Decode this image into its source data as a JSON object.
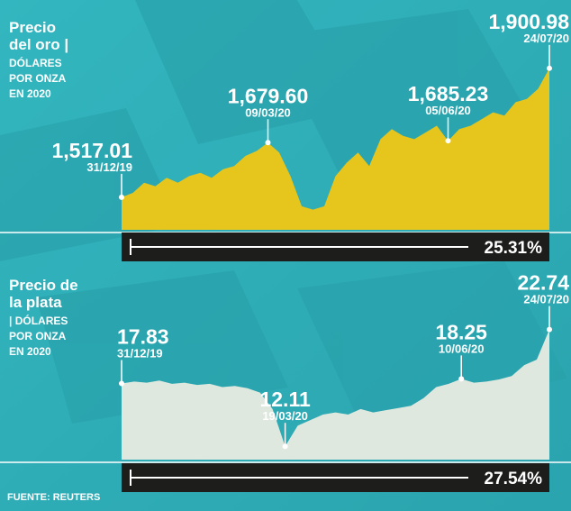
{
  "chart_data": [
    {
      "type": "area",
      "title_lines": [
        "Precio",
        "del oro |"
      ],
      "subtitle_lines": [
        "DÓLARES",
        "POR ONZA",
        "EN 2020"
      ],
      "color": "#e6c51c",
      "ylim": [
        1420,
        1930
      ],
      "categories": [
        "31/12/19",
        null,
        null,
        null,
        null,
        null,
        null,
        null,
        null,
        null,
        null,
        null,
        null,
        "09/03/20",
        null,
        null,
        null,
        null,
        null,
        null,
        null,
        null,
        null,
        null,
        null,
        null,
        null,
        null,
        null,
        "05/06/20",
        null,
        null,
        null,
        null,
        null,
        null,
        null,
        null,
        "24/07/20"
      ],
      "values": [
        1517.01,
        1530,
        1560,
        1550,
        1575,
        1560,
        1580,
        1590,
        1575,
        1600,
        1610,
        1640,
        1655,
        1679.6,
        1650,
        1580,
        1490,
        1480,
        1490,
        1580,
        1620,
        1650,
        1610,
        1690,
        1720,
        1700,
        1690,
        1710,
        1730,
        1685.23,
        1720,
        1730,
        1750,
        1770,
        1760,
        1800,
        1810,
        1840,
        1900.98
      ],
      "value_labels": [
        "1,517.01",
        null,
        null,
        null,
        null,
        null,
        null,
        null,
        null,
        null,
        null,
        null,
        null,
        "1,679.60",
        null,
        null,
        null,
        null,
        null,
        null,
        null,
        null,
        null,
        null,
        null,
        null,
        null,
        null,
        null,
        "1,685.23",
        null,
        null,
        null,
        null,
        null,
        null,
        null,
        null,
        "1,900.98"
      ],
      "change": "25.31%"
    },
    {
      "type": "area",
      "title_lines": [
        "Precio de",
        "la plata"
      ],
      "subtitle_lines": [
        "| DÓLARES",
        "POR ONZA",
        "EN 2020"
      ],
      "color": "#dfe8de",
      "ylim": [
        10.9,
        23.2
      ],
      "categories": [
        "31/12/19",
        null,
        null,
        null,
        null,
        null,
        null,
        null,
        null,
        null,
        null,
        null,
        null,
        "19/03/20",
        null,
        null,
        null,
        null,
        null,
        null,
        null,
        null,
        null,
        null,
        null,
        null,
        null,
        "10/06/20",
        null,
        null,
        null,
        null,
        null,
        null,
        "24/07/20"
      ],
      "values": [
        17.83,
        18.0,
        17.9,
        18.1,
        17.8,
        17.9,
        17.7,
        17.8,
        17.5,
        17.6,
        17.4,
        17.0,
        15.5,
        12.11,
        14.0,
        14.5,
        15.0,
        15.2,
        15.0,
        15.5,
        15.2,
        15.4,
        15.6,
        15.8,
        16.5,
        17.5,
        17.8,
        18.25,
        17.9,
        18.0,
        18.2,
        18.5,
        19.5,
        20.0,
        22.74
      ],
      "value_labels": [
        "17.83",
        null,
        null,
        null,
        null,
        null,
        null,
        null,
        null,
        null,
        null,
        null,
        null,
        "12.11",
        null,
        null,
        null,
        null,
        null,
        null,
        null,
        null,
        null,
        null,
        null,
        null,
        null,
        "18.25",
        null,
        null,
        null,
        null,
        null,
        null,
        "22.74"
      ],
      "change": "27.54%"
    }
  ],
  "source": "FUENTE: REUTERS"
}
